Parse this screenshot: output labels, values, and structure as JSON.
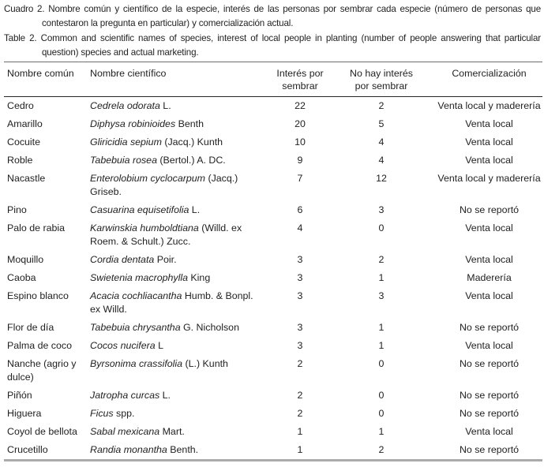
{
  "captions": {
    "spanish": "Cuadro 2. Nombre común y científico de la especie, interés de las personas por sembrar cada especie (número de personas que contestaron la pregunta en particular) y comercialización actual.",
    "english": "Table 2. Common and scientific names of species, interest of local people in planting (number of people answering that particular question) species and actual marketing."
  },
  "table": {
    "headers": {
      "common": "Nombre común",
      "scientific": "Nombre científico",
      "interest": "Interés por sembrar",
      "no_interest": "No hay interés por sembrar",
      "marketing": "Comercialización"
    },
    "rows": [
      {
        "common": "Cedro",
        "sci_italic": "Cedrela odorata",
        "sci_rest": " L.",
        "interest": "22",
        "no_interest": "2",
        "marketing": "Venta local y maderería"
      },
      {
        "common": "Amarillo",
        "sci_italic": "Diphysa robinioides",
        "sci_rest": " Benth",
        "interest": "20",
        "no_interest": "5",
        "marketing": "Venta local"
      },
      {
        "common": "Cocuite",
        "sci_italic": "Gliricidia sepium",
        "sci_rest": " (Jacq.) Kunth",
        "interest": "10",
        "no_interest": "4",
        "marketing": "Venta local"
      },
      {
        "common": "Roble",
        "sci_italic": "Tabebuia rosea",
        "sci_rest": " (Bertol.) A. DC.",
        "interest": "9",
        "no_interest": "4",
        "marketing": "Venta local"
      },
      {
        "common": "Nacastle",
        "sci_italic": "Enterolobium cyclocarpum",
        "sci_rest": " (Jacq.) Griseb.",
        "interest": "7",
        "no_interest": "12",
        "marketing": "Venta local y maderería"
      },
      {
        "common": "Pino",
        "sci_italic": "Casuarina equisetifolia",
        "sci_rest": " L.",
        "interest": "6",
        "no_interest": "3",
        "marketing": "No se reportó"
      },
      {
        "common": "Palo de rabia",
        "sci_italic": "Karwinskia humboldtiana",
        "sci_rest": " (Willd. ex Roem. & Schult.) Zucc.",
        "interest": "4",
        "no_interest": "0",
        "marketing": "Venta local"
      },
      {
        "common": "Moquillo",
        "sci_italic": "Cordia dentata",
        "sci_rest": " Poir.",
        "interest": "3",
        "no_interest": "2",
        "marketing": "Venta local"
      },
      {
        "common": "Caoba",
        "sci_italic": "Swietenia macrophylla",
        "sci_rest": " King",
        "interest": "3",
        "no_interest": "1",
        "marketing": "Maderería"
      },
      {
        "common": "Espino blanco",
        "sci_italic": "Acacia cochliacantha",
        "sci_rest": " Humb. & Bonpl. ex Willd.",
        "interest": "3",
        "no_interest": "3",
        "marketing": "Venta local"
      },
      {
        "common": "Flor de día",
        "sci_italic": "Tabebuia chrysantha",
        "sci_rest": " G. Nicholson",
        "interest": "3",
        "no_interest": "1",
        "marketing": "No se reportó"
      },
      {
        "common": "Palma de coco",
        "sci_italic": "Cocos nucifera",
        "sci_rest": " L",
        "interest": "3",
        "no_interest": "1",
        "marketing": "Venta local"
      },
      {
        "common": "Nanche (agrio y dulce)",
        "sci_italic": "Byrsonima crassifolia",
        "sci_rest": " (L.) Kunth",
        "interest": "2",
        "no_interest": "0",
        "marketing": "No se reportó"
      },
      {
        "common": "Piñón",
        "sci_italic": "Jatropha curcas",
        "sci_rest": " L.",
        "interest": "2",
        "no_interest": "0",
        "marketing": "No se reportó"
      },
      {
        "common": "Higuera",
        "sci_italic": "Ficus",
        "sci_rest": " spp.",
        "interest": "2",
        "no_interest": "0",
        "marketing": "No se reportó"
      },
      {
        "common": "Coyol de bellota",
        "sci_italic": "Sabal mexicana",
        "sci_rest": " Mart.",
        "interest": "1",
        "no_interest": "1",
        "marketing": "Venta local"
      },
      {
        "common": "Crucetillo",
        "sci_italic": "Randia monantha",
        "sci_rest": " Benth.",
        "interest": "1",
        "no_interest": "2",
        "marketing": "No se reportó"
      }
    ]
  }
}
